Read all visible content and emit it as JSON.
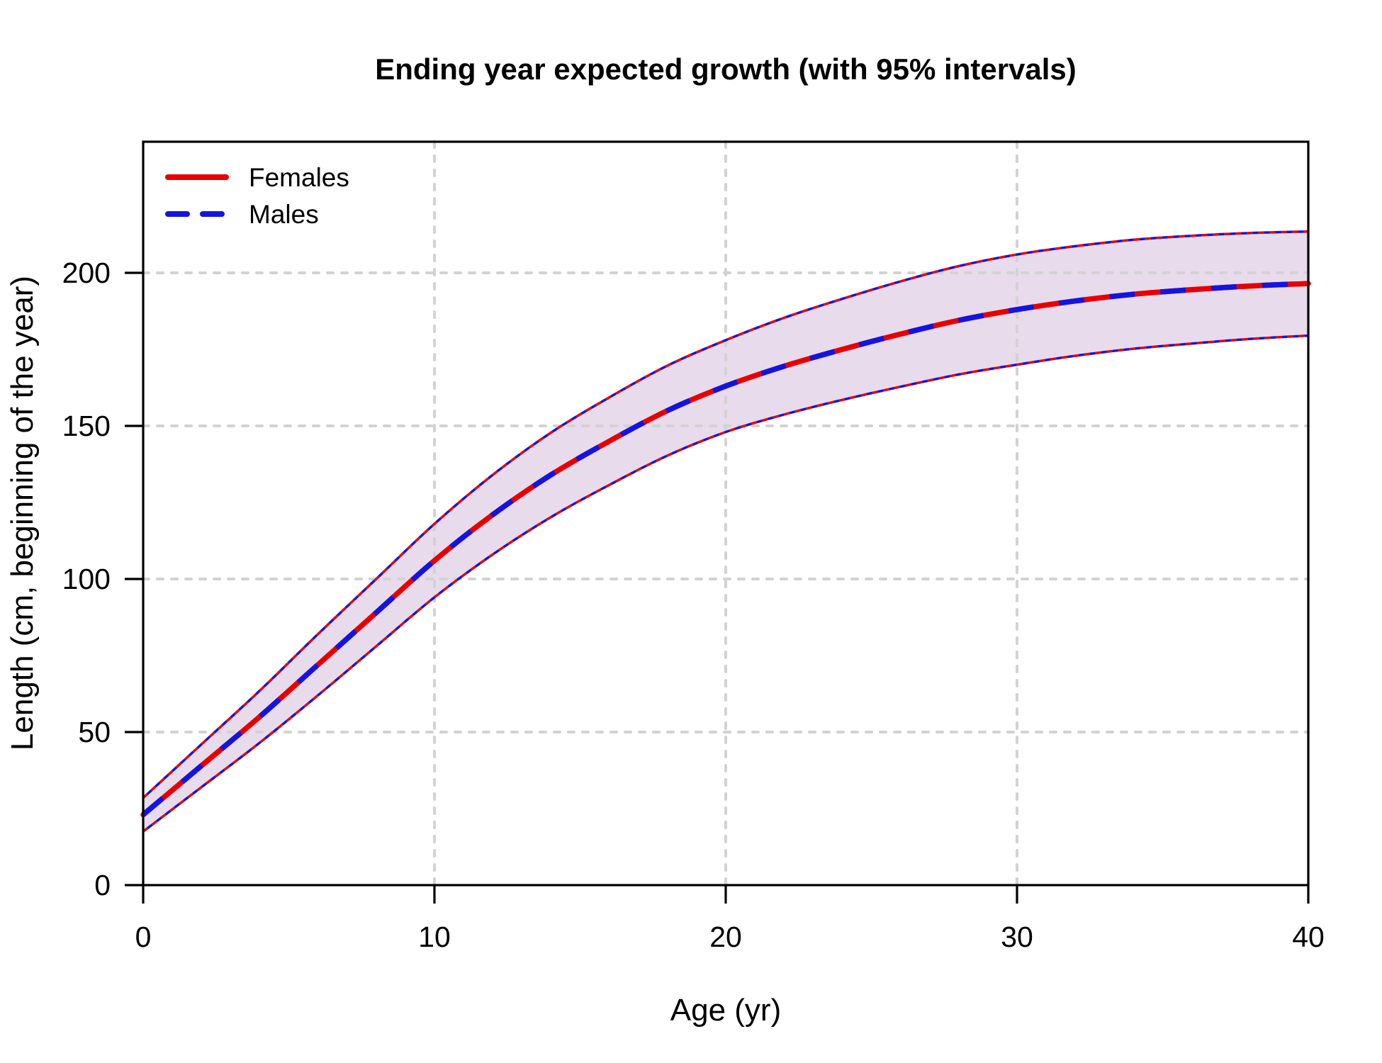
{
  "title": "Ending year expected growth (with 95% intervals)",
  "axes": {
    "x": {
      "label": "Age (yr)",
      "ticks": [
        "0",
        "10",
        "20",
        "30",
        "40"
      ],
      "tick_values": [
        0,
        10,
        20,
        30,
        40
      ],
      "range": [
        0,
        40
      ]
    },
    "y": {
      "label": "Length (cm, beginning of the year)",
      "ticks": [
        "0",
        "50",
        "100",
        "150",
        "200"
      ],
      "tick_values": [
        0,
        50,
        100,
        150,
        200
      ],
      "range": [
        0,
        243
      ]
    }
  },
  "legend": {
    "items": [
      {
        "label": "Females",
        "color": "#E80000",
        "line": "solid"
      },
      {
        "label": "Males",
        "color": "#1414E0",
        "line": "dashed"
      }
    ]
  },
  "colors": {
    "female_line": "#E80000",
    "male_line": "#1414E0",
    "band_fill": "#E8DBEC",
    "grid": "#D2D2D2",
    "axis": "#000000",
    "background": "#FFFFFF"
  },
  "chart_data": {
    "type": "line",
    "title": "Ending year expected growth (with 95% intervals)",
    "xlabel": "Age (yr)",
    "ylabel": "Length (cm, beginning of the year)",
    "x": [
      0,
      2,
      4,
      6,
      8,
      10,
      12,
      14,
      16,
      18,
      20,
      22,
      24,
      26,
      28,
      30,
      32,
      34,
      36,
      38,
      40
    ],
    "series": [
      {
        "name": "Females",
        "style": "solid",
        "color": "#E80000",
        "values": [
          23,
          39,
          55,
          72,
          89,
          106,
          121,
          134,
          145,
          155,
          163,
          169.5,
          175,
          180,
          184.5,
          188,
          190.8,
          193,
          194.5,
          195.7,
          196.5
        ]
      },
      {
        "name": "Males",
        "style": "dashed",
        "color": "#1414E0",
        "values": [
          23,
          39,
          55,
          72,
          89,
          106,
          121,
          134,
          145,
          155,
          163,
          169.5,
          175,
          180,
          184.5,
          188,
          190.8,
          193,
          194.5,
          195.7,
          196.5
        ]
      }
    ],
    "interval": {
      "level": "95%",
      "lower": [
        17.5,
        32,
        46.5,
        62,
        78,
        94,
        108,
        120.2,
        130.7,
        140.3,
        148,
        153.7,
        158.5,
        162.8,
        166.8,
        170,
        172.9,
        175.2,
        176.9,
        178.4,
        179.5
      ],
      "upper": [
        28.5,
        46,
        63.5,
        82,
        100,
        118,
        134,
        147.8,
        159.3,
        169.7,
        178,
        185.3,
        191.5,
        197.2,
        202.2,
        206,
        208.7,
        210.8,
        212.1,
        213,
        213.5
      ]
    },
    "xlim": [
      0,
      40
    ],
    "ylim": [
      0,
      243
    ],
    "grid": true,
    "grid_style": "dotted",
    "legend_position": "top-left"
  }
}
